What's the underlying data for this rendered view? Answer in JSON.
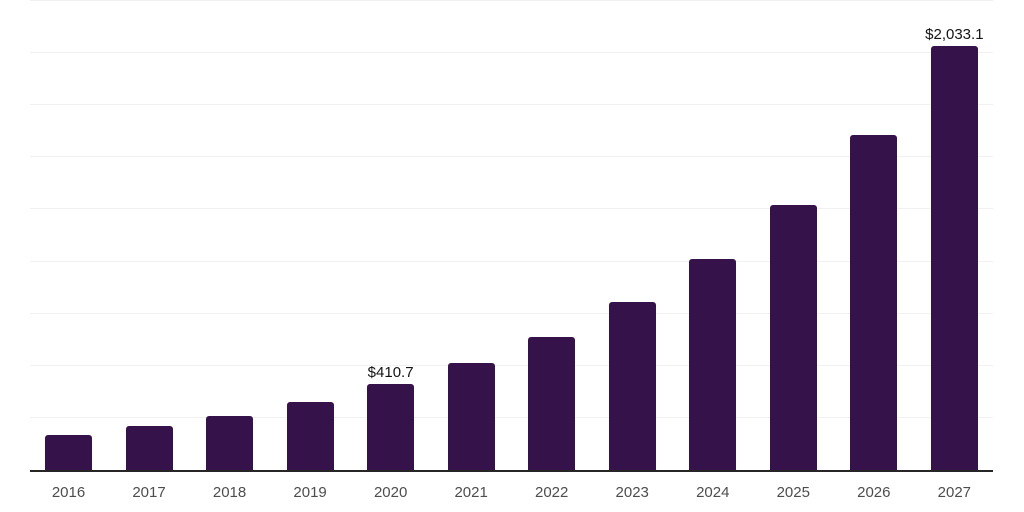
{
  "chart_data": {
    "type": "bar",
    "title": "",
    "xlabel": "",
    "ylabel": "",
    "categories": [
      "2016",
      "2017",
      "2018",
      "2019",
      "2020",
      "2021",
      "2022",
      "2023",
      "2024",
      "2025",
      "2026",
      "2027"
    ],
    "values": [
      170,
      210,
      258,
      325,
      410.7,
      512,
      636,
      805,
      1010,
      1273,
      1608,
      2033.1
    ],
    "annotations": [
      {
        "category": "2020",
        "text": "$410.7"
      },
      {
        "category": "2027",
        "text": "$2,033.1"
      }
    ],
    "ylim": [
      0,
      2250
    ],
    "grid_step": 250,
    "grid": true,
    "legend_position": "none",
    "y_axis_tick_labels_visible": false,
    "bar_color": "#36124a",
    "gridline_color": "#f1f1f1",
    "axis_line_color": "#262626",
    "x_tick_label_color": "#4d4d4d",
    "data_label_color": "#141414"
  }
}
